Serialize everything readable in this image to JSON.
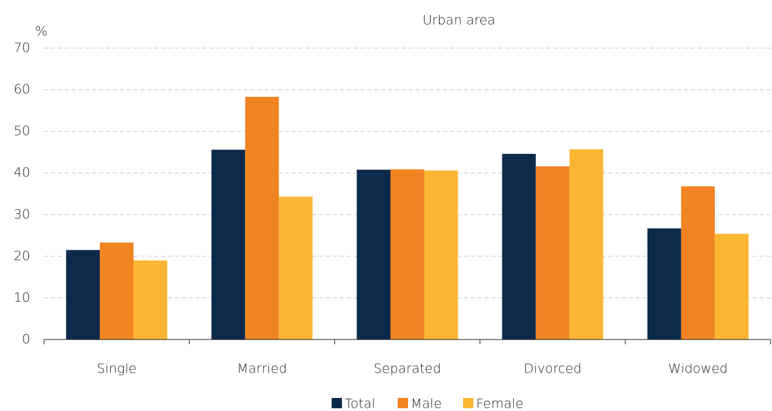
{
  "chart_data": {
    "type": "bar",
    "title": "Urban area",
    "y_label": "%",
    "categories": [
      "Single",
      "Married",
      "Separated",
      "Divorced",
      "Widowed"
    ],
    "series": [
      {
        "name": "Total",
        "color": "#0d2a4d",
        "values": [
          21.5,
          45.6,
          40.8,
          44.6,
          26.7
        ]
      },
      {
        "name": "Male",
        "color": "#f08423",
        "values": [
          23.3,
          58.3,
          40.9,
          41.6,
          36.8
        ]
      },
      {
        "name": "Female",
        "color": "#fbb634",
        "values": [
          19.0,
          34.3,
          40.6,
          45.7,
          25.4
        ]
      }
    ],
    "ylim": [
      0,
      70
    ],
    "yticks": [
      0,
      10,
      20,
      30,
      40,
      50,
      60,
      70
    ],
    "grid": true
  }
}
